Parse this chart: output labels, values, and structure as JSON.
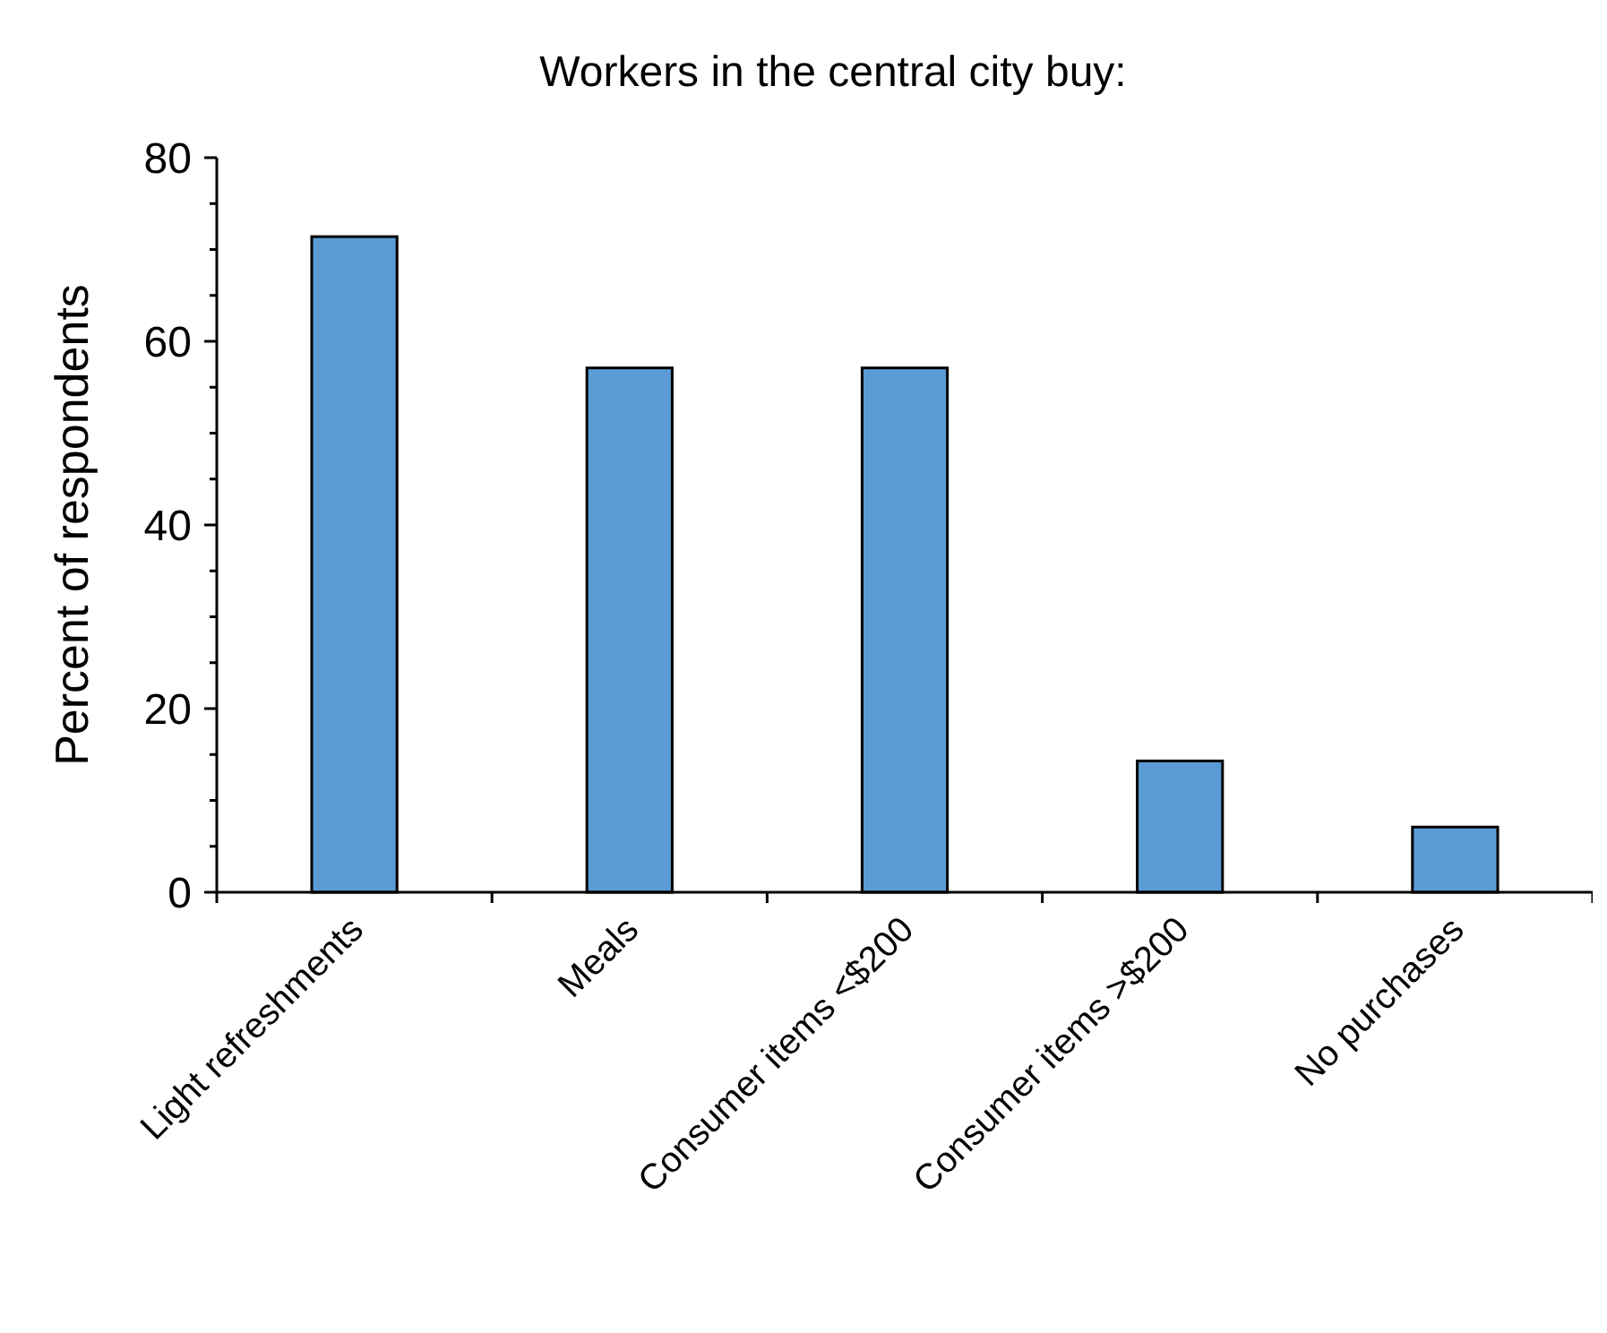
{
  "chart_data": {
    "type": "bar",
    "title": "Workers in the central city buy:",
    "ylabel": "Percent of respondents",
    "categories": [
      "Light refreshments",
      "Meals",
      "Consumer items <$200",
      "Consumer items >$200",
      "No purchases"
    ],
    "values": [
      71.4,
      57.1,
      57.1,
      14.3,
      7.1
    ],
    "color": "#5b9bd5",
    "ylim": [
      0,
      80
    ],
    "yticks": [
      0,
      {
        "value": 5,
        "label": null
      },
      {
        "value": 10,
        "label": null
      },
      {
        "value": 15,
        "label": null
      },
      20,
      {
        "value": 25,
        "label": null
      },
      {
        "value": 30,
        "label": null
      },
      {
        "value": 35,
        "label": null
      },
      40,
      {
        "value": 45,
        "label": null
      },
      {
        "value": 50,
        "label": null
      },
      {
        "value": 55,
        "label": null
      },
      60,
      {
        "value": 65,
        "label": null
      },
      {
        "value": 70,
        "label": null
      },
      {
        "value": 75,
        "label": null
      },
      80
    ],
    "grid": false
  }
}
